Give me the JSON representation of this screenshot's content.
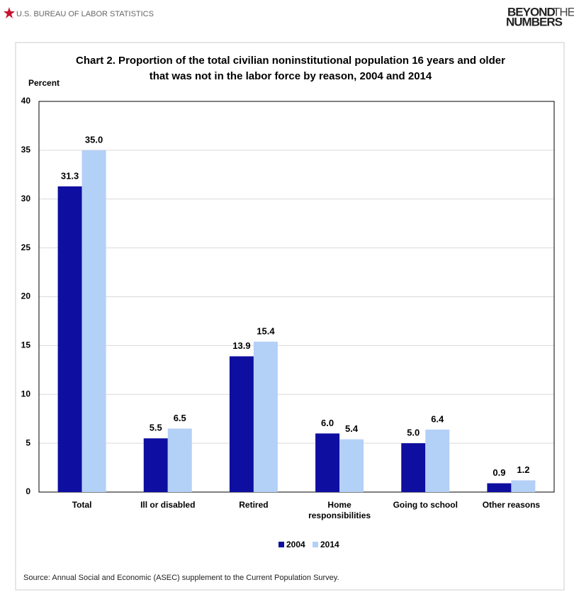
{
  "header": {
    "agency": "U.S. BUREAU OF LABOR STATISTICS",
    "logo_top_bold": "BEYOND",
    "logo_top_light": "THE",
    "logo_bottom": "NUMBERS"
  },
  "chart_data": {
    "type": "bar",
    "title": "Chart 2.  Proportion of the total civilian noninstitutional population 16 years and older that was not in the labor force by reason, 2004 and 2014",
    "y_label": "Percent",
    "categories": [
      "Total",
      "Ill or disabled",
      "Retired",
      "Home responsibilities",
      "Going to school",
      "Other reasons"
    ],
    "series": [
      {
        "name": "2004",
        "color": "#0e0ea0",
        "values": [
          31.3,
          5.5,
          13.9,
          6.0,
          5.0,
          0.9
        ],
        "value_labels": [
          "31.3",
          "5.5",
          "13.9",
          "6.0",
          "5.0",
          "0.9"
        ]
      },
      {
        "name": "2014",
        "color": "#b3d0f7",
        "values": [
          35.0,
          6.5,
          15.4,
          5.4,
          6.4,
          1.2
        ],
        "value_labels": [
          "35.0",
          "6.5",
          "15.4",
          "5.4",
          "6.4",
          "1.2"
        ]
      }
    ],
    "ylim": [
      0,
      40
    ],
    "yticks": [
      0,
      5,
      10,
      15,
      20,
      25,
      30,
      35,
      40
    ],
    "grid": true,
    "legend": "bottom",
    "source": "Source: Annual Social and Economic (ASEC) supplement to the Current Population Survey."
  }
}
